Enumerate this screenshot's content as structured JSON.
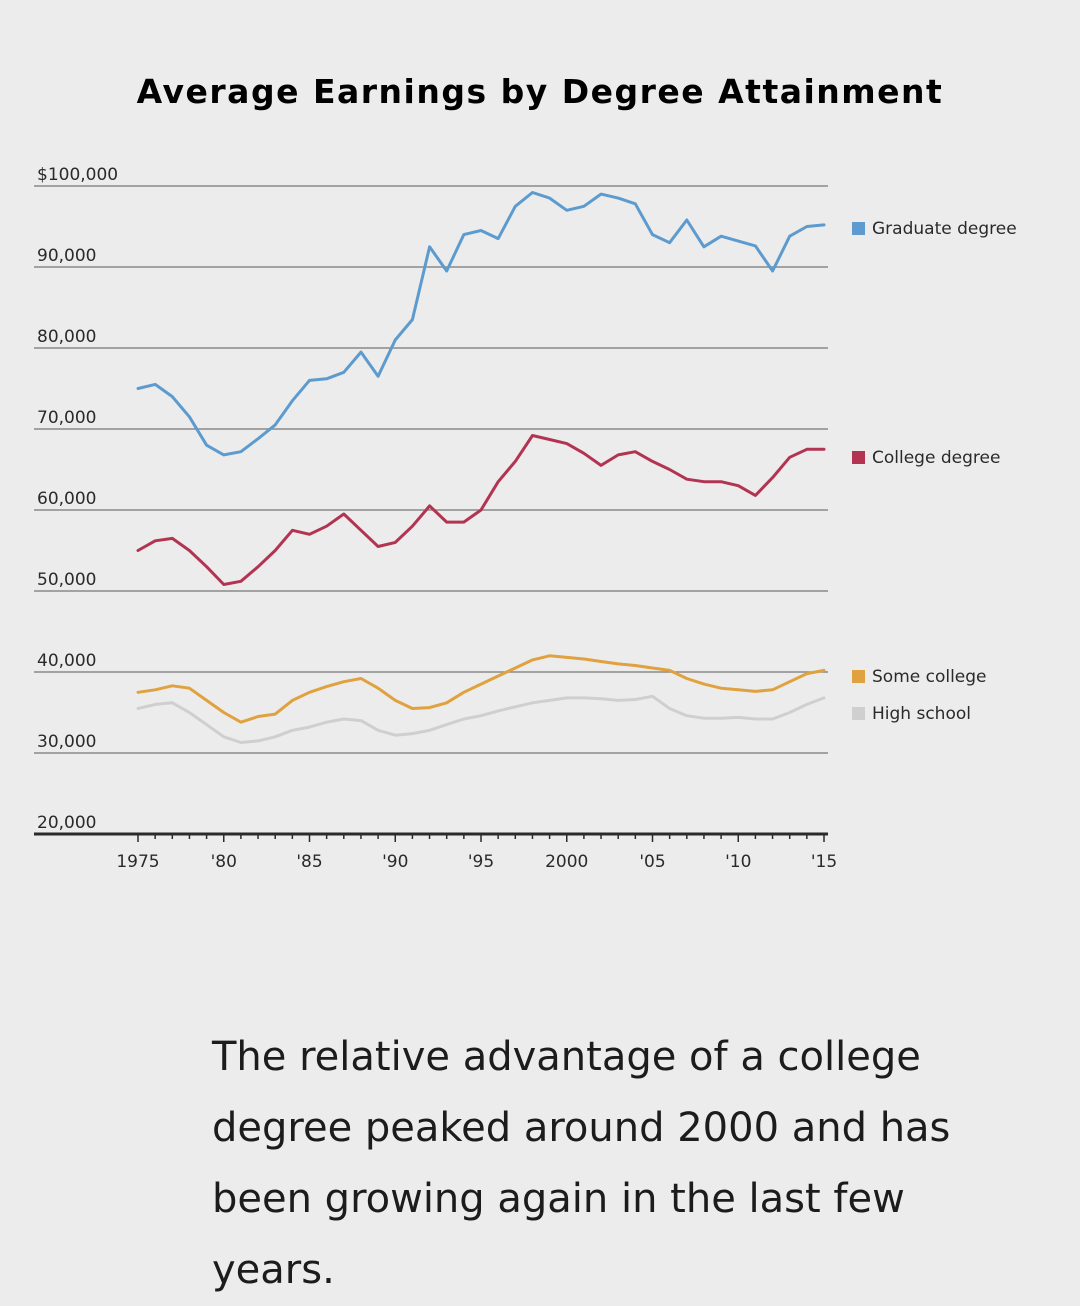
{
  "chart_data": {
    "type": "line",
    "title": "Average Earnings by Degree Attainment",
    "xlabel": "",
    "ylabel": "",
    "xlim": [
      1975,
      2015
    ],
    "ylim": [
      20000,
      100000
    ],
    "y_ticks": [
      {
        "value": 100000,
        "label": "$100,000"
      },
      {
        "value": 90000,
        "label": "90,000"
      },
      {
        "value": 80000,
        "label": "80,000"
      },
      {
        "value": 70000,
        "label": "70,000"
      },
      {
        "value": 60000,
        "label": "60,000"
      },
      {
        "value": 50000,
        "label": "50,000"
      },
      {
        "value": 40000,
        "label": "40,000"
      },
      {
        "value": 30000,
        "label": "30,000"
      },
      {
        "value": 20000,
        "label": "20,000"
      }
    ],
    "x_ticks": [
      {
        "value": 1975,
        "label": "1975"
      },
      {
        "value": 1980,
        "label": "'80"
      },
      {
        "value": 1985,
        "label": "'85"
      },
      {
        "value": 1990,
        "label": "'90"
      },
      {
        "value": 1995,
        "label": "'95"
      },
      {
        "value": 2000,
        "label": "2000"
      },
      {
        "value": 2005,
        "label": "'05"
      },
      {
        "value": 2010,
        "label": "'10"
      },
      {
        "value": 2015,
        "label": "'15"
      }
    ],
    "grid": true,
    "legend_position": "right",
    "x": [
      1975,
      1976,
      1977,
      1978,
      1979,
      1980,
      1981,
      1982,
      1983,
      1984,
      1985,
      1986,
      1987,
      1988,
      1989,
      1990,
      1991,
      1992,
      1993,
      1994,
      1995,
      1996,
      1997,
      1998,
      1999,
      2000,
      2001,
      2002,
      2003,
      2004,
      2005,
      2006,
      2007,
      2008,
      2009,
      2010,
      2011,
      2012,
      2013,
      2014,
      2015
    ],
    "series": [
      {
        "name": "Graduate degree",
        "color": "#5d9bcf",
        "values": [
          75000,
          75500,
          74000,
          71500,
          68000,
          66800,
          67200,
          68800,
          70500,
          73500,
          76000,
          76200,
          77000,
          79500,
          76500,
          81000,
          83500,
          92500,
          89500,
          94000,
          94500,
          93500,
          97500,
          99200,
          98500,
          97000,
          97500,
          99000,
          98500,
          97800,
          94000,
          93000,
          95800,
          92500,
          93800,
          93200,
          92600,
          89500,
          93800,
          95000,
          95200
        ]
      },
      {
        "name": "College degree",
        "color": "#b23452",
        "values": [
          55000,
          56200,
          56500,
          55000,
          53000,
          50800,
          51200,
          53000,
          55000,
          57500,
          57000,
          58000,
          59500,
          57500,
          55500,
          56000,
          58000,
          60500,
          58500,
          58500,
          60000,
          63500,
          66000,
          69200,
          68700,
          68200,
          67000,
          65500,
          66800,
          67200,
          66000,
          65000,
          63800,
          63500,
          63500,
          63000,
          61800,
          64000,
          66500,
          67500,
          67500
        ]
      },
      {
        "name": "Some college",
        "color": "#e0a13f",
        "values": [
          37500,
          37800,
          38300,
          38000,
          36500,
          35000,
          33800,
          34500,
          34800,
          36500,
          37500,
          38200,
          38800,
          39200,
          38000,
          36500,
          35500,
          35600,
          36200,
          37500,
          38500,
          39500,
          40500,
          41500,
          42000,
          41800,
          41600,
          41300,
          41000,
          40800,
          40500,
          40200,
          39200,
          38500,
          38000,
          37800,
          37600,
          37800,
          38800,
          39800,
          40200
        ]
      },
      {
        "name": "High school",
        "color": "#cfcfcf",
        "values": [
          35500,
          36000,
          36200,
          35000,
          33500,
          32000,
          31300,
          31500,
          32000,
          32800,
          33200,
          33800,
          34200,
          34000,
          32800,
          32200,
          32400,
          32800,
          33500,
          34200,
          34600,
          35200,
          35700,
          36200,
          36500,
          36800,
          36800,
          36700,
          36500,
          36600,
          37000,
          35500,
          34600,
          34300,
          34300,
          34400,
          34200,
          34200,
          35000,
          36000,
          36800
        ]
      }
    ]
  },
  "caption": "The relative advantage of a college degree peaked around 2000 and has been growing again in the last few years."
}
